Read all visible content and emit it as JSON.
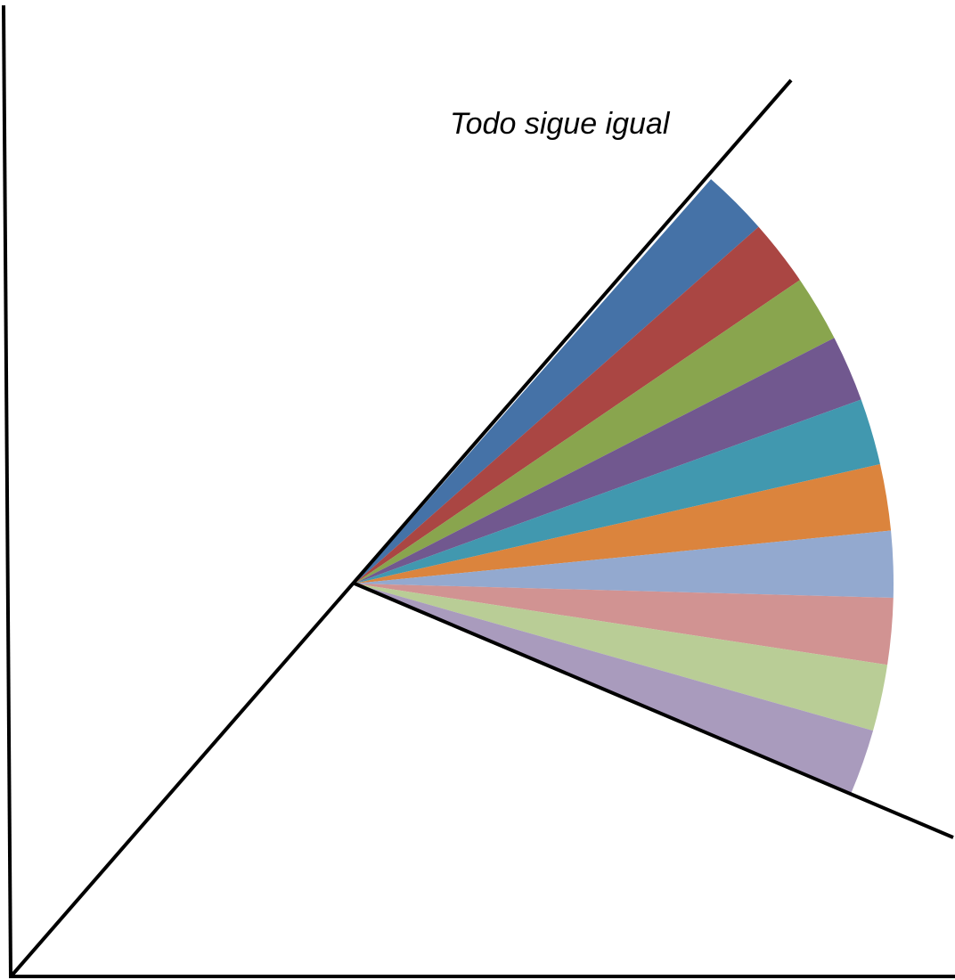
{
  "label": "Todo sigue igual",
  "fan": {
    "wedge_colors": [
      "#4572A7",
      "#AA4643",
      "#89A54E",
      "#71588F",
      "#4198AF",
      "#DB843D",
      "#93A9CF",
      "#D19392",
      "#B9CD96",
      "#A99BBD"
    ],
    "line_color": "#000000"
  }
}
